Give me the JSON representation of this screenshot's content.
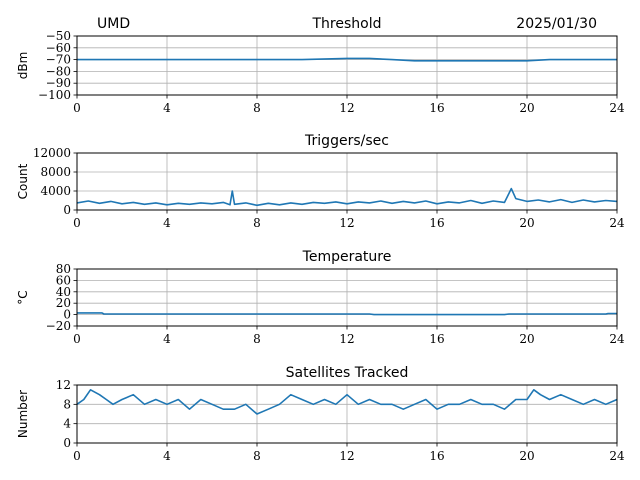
{
  "header": {
    "station": "UMD",
    "date": "2025/01/30"
  },
  "colors": {
    "series": "#1f77b4",
    "grid": "#b0b0b0"
  },
  "chart_data": [
    {
      "type": "line",
      "title": "Threshold",
      "ylabel": "dBm",
      "xlim": [
        0,
        24
      ],
      "ylim": [
        -100,
        -50
      ],
      "xticks": [
        0,
        4,
        8,
        12,
        16,
        20,
        24
      ],
      "yticks": [
        -100,
        -90,
        -80,
        -70,
        -60,
        -50
      ],
      "ytick_labels": [
        "−100",
        "−90",
        "−80",
        "−70",
        "−60",
        "−50"
      ],
      "grid": true,
      "series": [
        {
          "x": [
            0,
            2,
            4,
            6,
            8,
            10,
            12,
            13,
            14,
            15,
            16,
            17,
            18,
            19,
            20,
            21,
            22,
            23,
            24
          ],
          "y": [
            -70,
            -70,
            -70,
            -70,
            -70,
            -70,
            -69,
            -69,
            -70,
            -71,
            -71,
            -71,
            -71,
            -71,
            -71,
            -70,
            -70,
            -70,
            -70
          ]
        }
      ]
    },
    {
      "type": "line",
      "title": "Triggers/sec",
      "ylabel": "Count",
      "xlim": [
        0,
        24
      ],
      "ylim": [
        0,
        12000
      ],
      "xticks": [
        0,
        4,
        8,
        12,
        16,
        20,
        24
      ],
      "yticks": [
        0,
        4000,
        8000,
        12000
      ],
      "ytick_labels": [
        "0",
        "4000",
        "8000",
        "12000"
      ],
      "grid": true,
      "series": [
        {
          "x": [
            0,
            0.5,
            1,
            1.5,
            2,
            2.5,
            3,
            3.5,
            4,
            4.5,
            5,
            5.5,
            6,
            6.5,
            6.8,
            6.9,
            7,
            7.5,
            8,
            8.5,
            9,
            9.5,
            10,
            10.5,
            11,
            11.5,
            12,
            12.5,
            13,
            13.5,
            14,
            14.5,
            15,
            15.5,
            16,
            16.5,
            17,
            17.5,
            18,
            18.5,
            19,
            19.3,
            19.5,
            20,
            20.5,
            21,
            21.5,
            22,
            22.5,
            23,
            23.5,
            24
          ],
          "y": [
            1500,
            1900,
            1400,
            1800,
            1300,
            1600,
            1200,
            1500,
            1100,
            1400,
            1200,
            1500,
            1300,
            1600,
            1100,
            4000,
            1200,
            1500,
            1000,
            1400,
            1100,
            1500,
            1200,
            1600,
            1400,
            1700,
            1300,
            1700,
            1500,
            1900,
            1400,
            1800,
            1500,
            1900,
            1300,
            1700,
            1500,
            2000,
            1400,
            1900,
            1600,
            4500,
            2400,
            1800,
            2100,
            1700,
            2200,
            1600,
            2100,
            1700,
            2000,
            1800
          ]
        }
      ]
    },
    {
      "type": "line",
      "title": "Temperature",
      "ylabel": "°C",
      "xlim": [
        0,
        24
      ],
      "ylim": [
        -20,
        80
      ],
      "xticks": [
        0,
        4,
        8,
        12,
        16,
        20,
        24
      ],
      "yticks": [
        -20,
        0,
        20,
        40,
        60,
        80
      ],
      "ytick_labels": [
        "−20",
        "0",
        "20",
        "40",
        "60",
        "80"
      ],
      "grid": true,
      "series": [
        {
          "x": [
            0,
            1.1,
            1.2,
            13,
            13.2,
            19,
            19.2,
            23.5,
            23.6,
            24
          ],
          "y": [
            3,
            3,
            1,
            1,
            0,
            0,
            1,
            1,
            2,
            2
          ]
        }
      ]
    },
    {
      "type": "line",
      "title": "Satellites Tracked",
      "ylabel": "Number",
      "xlim": [
        0,
        24
      ],
      "ylim": [
        0,
        12
      ],
      "xticks": [
        0,
        4,
        8,
        12,
        16,
        20,
        24
      ],
      "yticks": [
        0,
        4,
        8,
        12
      ],
      "ytick_labels": [
        "0",
        "4",
        "8",
        "12"
      ],
      "grid": true,
      "series": [
        {
          "x": [
            0,
            0.3,
            0.6,
            1,
            1.3,
            1.6,
            2,
            2.5,
            3,
            3.5,
            4,
            4.5,
            5,
            5.5,
            6,
            6.5,
            7,
            7.5,
            8,
            8.5,
            9,
            9.5,
            10,
            10.5,
            11,
            11.5,
            12,
            12.5,
            13,
            13.5,
            14,
            14.5,
            15,
            15.5,
            16,
            16.5,
            17,
            17.5,
            18,
            18.5,
            19,
            19.5,
            20,
            20.3,
            20.6,
            21,
            21.5,
            22,
            22.5,
            23,
            23.5,
            24
          ],
          "y": [
            8,
            9,
            11,
            10,
            9,
            8,
            9,
            10,
            8,
            9,
            8,
            9,
            7,
            9,
            8,
            7,
            7,
            8,
            6,
            7,
            8,
            10,
            9,
            8,
            9,
            8,
            10,
            8,
            9,
            8,
            8,
            7,
            8,
            9,
            7,
            8,
            8,
            9,
            8,
            8,
            7,
            9,
            9,
            11,
            10,
            9,
            10,
            9,
            8,
            9,
            8,
            9
          ]
        }
      ]
    }
  ]
}
